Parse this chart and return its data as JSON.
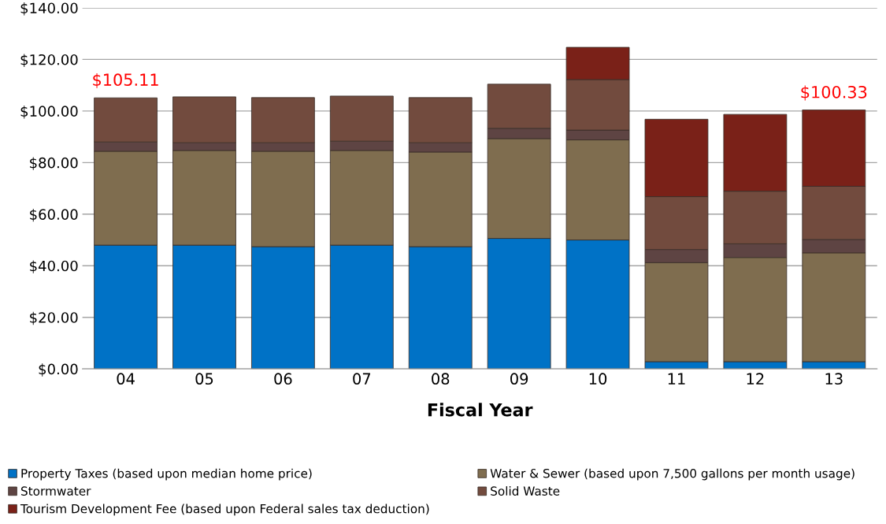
{
  "chart_data": {
    "type": "bar",
    "stacked": true,
    "xlabel": "Fiscal Year",
    "categories": [
      "04",
      "05",
      "06",
      "07",
      "08",
      "09",
      "10",
      "11",
      "12",
      "13"
    ],
    "series": [
      {
        "name": "Property Taxes (based upon median home price)",
        "color": "#0072c6",
        "values": [
          48.0,
          48.0,
          47.4,
          48.0,
          47.4,
          50.6,
          50.0,
          2.8,
          2.8,
          2.8
        ]
      },
      {
        "name": "Water & Sewer (based upon 7,500 gallons per month usage)",
        "color": "#7f6d4f",
        "values": [
          36.4,
          36.7,
          37.0,
          36.7,
          36.7,
          38.7,
          38.8,
          38.4,
          40.4,
          42.2
        ]
      },
      {
        "name": "Stormwater",
        "color": "#5e4443",
        "values": [
          3.6,
          3.0,
          3.3,
          3.6,
          3.6,
          4.0,
          3.8,
          5.1,
          5.3,
          5.2
        ]
      },
      {
        "name": "Solid Waste",
        "color": "#724b3e",
        "values": [
          17.1,
          17.8,
          17.5,
          17.5,
          17.5,
          17.1,
          19.6,
          20.5,
          20.4,
          20.6
        ]
      },
      {
        "name": "Tourism Development Fee (based upon Federal sales tax deduction)",
        "color": "#7a2118",
        "values": [
          null,
          null,
          null,
          null,
          null,
          null,
          12.5,
          30.0,
          29.8,
          29.6
        ]
      }
    ],
    "ylim": [
      0,
      140
    ],
    "yticks": [
      {
        "value": 0,
        "label": "$0.00"
      },
      {
        "value": 20,
        "label": "$20.00"
      },
      {
        "value": 40,
        "label": "$40.00"
      },
      {
        "value": 60,
        "label": "$60.00"
      },
      {
        "value": 80,
        "label": "$80.00"
      },
      {
        "value": 100,
        "label": "$100.00"
      },
      {
        "value": 120,
        "label": "$120.00"
      },
      {
        "value": 140,
        "label": "$140.00"
      }
    ],
    "grid": "y",
    "legend": "bottom",
    "annotations": [
      {
        "text": "$105.11",
        "x": "04",
        "y": 105.11
      },
      {
        "text": "$100.33",
        "x": "13",
        "y": 100.33
      }
    ]
  }
}
